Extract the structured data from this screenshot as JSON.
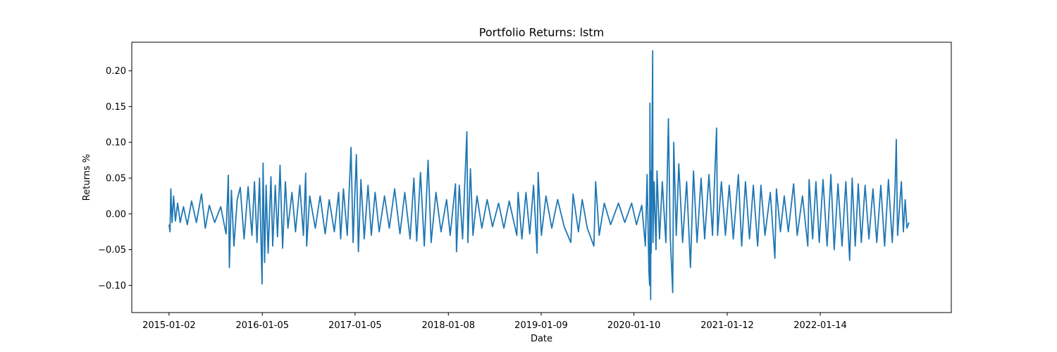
{
  "chart_data": {
    "type": "line",
    "title": "Portfolio Returns: lstm",
    "xlabel": "Date",
    "ylabel": "Returns %",
    "x_start": "2015-01-02",
    "x_end": "2022-12-30",
    "xlim": [
      "2014-08-08",
      "2023-06-15"
    ],
    "ylim": [
      -0.138,
      0.24
    ],
    "x_tick_labels": [
      "2015-01-02",
      "2016-01-05",
      "2017-01-05",
      "2018-01-08",
      "2019-01-09",
      "2020-01-10",
      "2021-01-12",
      "2022-01-14"
    ],
    "y_ticks": [
      -0.1,
      -0.05,
      0.0,
      0.05,
      0.1,
      0.15,
      0.2
    ],
    "y_tick_labels": [
      "−0.10",
      "−0.05",
      "0.00",
      "0.05",
      "0.10",
      "0.15",
      "0.20"
    ],
    "grid": false,
    "legend": "none",
    "series": [
      {
        "color": "#1f77b4",
        "points": [
          [
            "2015-01-02",
            -0.015
          ],
          [
            "2015-01-06",
            -0.025
          ],
          [
            "2015-01-09",
            0.035
          ],
          [
            "2015-01-14",
            -0.012
          ],
          [
            "2015-01-20",
            0.025
          ],
          [
            "2015-01-27",
            -0.01
          ],
          [
            "2015-02-05",
            0.015
          ],
          [
            "2015-02-15",
            -0.012
          ],
          [
            "2015-02-28",
            0.01
          ],
          [
            "2015-03-15",
            -0.015
          ],
          [
            "2015-04-01",
            0.018
          ],
          [
            "2015-04-20",
            -0.012
          ],
          [
            "2015-05-10",
            0.028
          ],
          [
            "2015-05-25",
            -0.02
          ],
          [
            "2015-06-10",
            0.012
          ],
          [
            "2015-07-01",
            -0.012
          ],
          [
            "2015-07-25",
            0.01
          ],
          [
            "2015-08-15",
            -0.028
          ],
          [
            "2015-08-24",
            0.054
          ],
          [
            "2015-08-28",
            -0.075
          ],
          [
            "2015-09-05",
            0.033
          ],
          [
            "2015-09-15",
            -0.045
          ],
          [
            "2015-09-28",
            0.02
          ],
          [
            "2015-10-10",
            0.037
          ],
          [
            "2015-10-25",
            -0.035
          ],
          [
            "2015-11-10",
            0.038
          ],
          [
            "2015-11-25",
            -0.03
          ],
          [
            "2015-12-05",
            0.045
          ],
          [
            "2015-12-15",
            -0.04
          ],
          [
            "2015-12-25",
            0.05
          ],
          [
            "2016-01-04",
            -0.098
          ],
          [
            "2016-01-08",
            0.071
          ],
          [
            "2016-01-14",
            -0.068
          ],
          [
            "2016-01-20",
            0.04
          ],
          [
            "2016-01-28",
            -0.055
          ],
          [
            "2016-02-08",
            0.052
          ],
          [
            "2016-02-15",
            -0.045
          ],
          [
            "2016-02-25",
            0.04
          ],
          [
            "2016-03-05",
            -0.032
          ],
          [
            "2016-03-15",
            0.068
          ],
          [
            "2016-03-25",
            -0.048
          ],
          [
            "2016-04-05",
            0.045
          ],
          [
            "2016-04-15",
            -0.02
          ],
          [
            "2016-05-01",
            0.03
          ],
          [
            "2016-05-15",
            -0.025
          ],
          [
            "2016-06-01",
            0.04
          ],
          [
            "2016-06-15",
            -0.03
          ],
          [
            "2016-06-24",
            0.057
          ],
          [
            "2016-06-28",
            -0.045
          ],
          [
            "2016-07-10",
            0.025
          ],
          [
            "2016-08-01",
            -0.02
          ],
          [
            "2016-08-20",
            0.025
          ],
          [
            "2016-09-09",
            -0.028
          ],
          [
            "2016-09-25",
            0.02
          ],
          [
            "2016-10-15",
            -0.025
          ],
          [
            "2016-11-01",
            0.03
          ],
          [
            "2016-11-09",
            -0.035
          ],
          [
            "2016-11-20",
            0.035
          ],
          [
            "2016-12-05",
            -0.03
          ],
          [
            "2016-12-20",
            0.093
          ],
          [
            "2016-12-28",
            -0.04
          ],
          [
            "2017-01-10",
            0.083
          ],
          [
            "2017-01-18",
            -0.053
          ],
          [
            "2017-01-28",
            0.048
          ],
          [
            "2017-02-10",
            -0.035
          ],
          [
            "2017-02-25",
            0.04
          ],
          [
            "2017-03-10",
            -0.03
          ],
          [
            "2017-03-25",
            0.03
          ],
          [
            "2017-04-10",
            -0.025
          ],
          [
            "2017-05-01",
            0.025
          ],
          [
            "2017-05-20",
            -0.02
          ],
          [
            "2017-06-10",
            0.035
          ],
          [
            "2017-07-01",
            -0.028
          ],
          [
            "2017-07-20",
            0.03
          ],
          [
            "2017-08-10",
            -0.035
          ],
          [
            "2017-08-25",
            0.05
          ],
          [
            "2017-09-05",
            -0.038
          ],
          [
            "2017-09-20",
            0.058
          ],
          [
            "2017-10-05",
            -0.045
          ],
          [
            "2017-10-20",
            0.075
          ],
          [
            "2017-11-01",
            -0.04
          ],
          [
            "2017-11-20",
            0.03
          ],
          [
            "2017-12-10",
            -0.025
          ],
          [
            "2018-01-01",
            0.02
          ],
          [
            "2018-01-15",
            -0.03
          ],
          [
            "2018-02-05",
            0.042
          ],
          [
            "2018-02-09",
            -0.053
          ],
          [
            "2018-02-20",
            0.04
          ],
          [
            "2018-03-05",
            -0.035
          ],
          [
            "2018-03-22",
            0.115
          ],
          [
            "2018-03-26",
            -0.04
          ],
          [
            "2018-04-05",
            0.063
          ],
          [
            "2018-04-15",
            -0.03
          ],
          [
            "2018-05-01",
            0.025
          ],
          [
            "2018-05-20",
            -0.02
          ],
          [
            "2018-06-10",
            0.02
          ],
          [
            "2018-07-01",
            -0.018
          ],
          [
            "2018-07-25",
            0.015
          ],
          [
            "2018-08-15",
            -0.02
          ],
          [
            "2018-09-05",
            0.018
          ],
          [
            "2018-10-05",
            -0.03
          ],
          [
            "2018-10-10",
            0.03
          ],
          [
            "2018-10-25",
            -0.035
          ],
          [
            "2018-11-10",
            0.03
          ],
          [
            "2018-11-25",
            -0.028
          ],
          [
            "2018-12-10",
            0.04
          ],
          [
            "2018-12-24",
            -0.055
          ],
          [
            "2018-12-28",
            0.058
          ],
          [
            "2019-01-10",
            -0.03
          ],
          [
            "2019-01-28",
            0.025
          ],
          [
            "2019-02-20",
            -0.02
          ],
          [
            "2019-03-15",
            0.02
          ],
          [
            "2019-04-10",
            -0.018
          ],
          [
            "2019-05-06",
            -0.04
          ],
          [
            "2019-05-15",
            0.028
          ],
          [
            "2019-06-05",
            -0.025
          ],
          [
            "2019-06-20",
            0.02
          ],
          [
            "2019-07-10",
            -0.02
          ],
          [
            "2019-08-05",
            -0.045
          ],
          [
            "2019-08-12",
            0.045
          ],
          [
            "2019-08-26",
            -0.03
          ],
          [
            "2019-09-15",
            0.015
          ],
          [
            "2019-10-10",
            -0.015
          ],
          [
            "2019-11-10",
            0.015
          ],
          [
            "2019-12-05",
            -0.012
          ],
          [
            "2020-01-01",
            0.015
          ],
          [
            "2020-01-20",
            -0.015
          ],
          [
            "2020-02-10",
            0.012
          ],
          [
            "2020-02-24",
            -0.045
          ],
          [
            "2020-03-02",
            0.055
          ],
          [
            "2020-03-09",
            -0.08
          ],
          [
            "2020-03-12",
            -0.1
          ],
          [
            "2020-03-13",
            0.155
          ],
          [
            "2020-03-16",
            -0.12
          ],
          [
            "2020-03-17",
            0.06
          ],
          [
            "2020-03-18",
            -0.055
          ],
          [
            "2020-03-24",
            0.228
          ],
          [
            "2020-03-25",
            -0.04
          ],
          [
            "2020-03-30",
            0.045
          ],
          [
            "2020-04-06",
            -0.05
          ],
          [
            "2020-04-10",
            0.06
          ],
          [
            "2020-04-20",
            -0.035
          ],
          [
            "2020-05-01",
            0.045
          ],
          [
            "2020-05-15",
            -0.04
          ],
          [
            "2020-05-25",
            0.133
          ],
          [
            "2020-06-01",
            -0.03
          ],
          [
            "2020-06-11",
            -0.11
          ],
          [
            "2020-06-15",
            0.1
          ],
          [
            "2020-06-25",
            -0.03
          ],
          [
            "2020-07-05",
            0.07
          ],
          [
            "2020-07-20",
            -0.04
          ],
          [
            "2020-08-05",
            0.045
          ],
          [
            "2020-08-20",
            -0.075
          ],
          [
            "2020-09-01",
            0.06
          ],
          [
            "2020-09-15",
            -0.04
          ],
          [
            "2020-10-01",
            0.05
          ],
          [
            "2020-10-15",
            -0.035
          ],
          [
            "2020-11-01",
            0.055
          ],
          [
            "2020-11-15",
            -0.03
          ],
          [
            "2020-12-01",
            0.12
          ],
          [
            "2020-12-05",
            -0.03
          ],
          [
            "2020-12-20",
            0.045
          ],
          [
            "2021-01-05",
            -0.03
          ],
          [
            "2021-01-20",
            0.04
          ],
          [
            "2021-02-05",
            -0.035
          ],
          [
            "2021-02-25",
            0.055
          ],
          [
            "2021-03-10",
            -0.045
          ],
          [
            "2021-03-25",
            0.045
          ],
          [
            "2021-04-10",
            -0.035
          ],
          [
            "2021-04-25",
            0.04
          ],
          [
            "2021-05-12",
            -0.045
          ],
          [
            "2021-05-25",
            0.04
          ],
          [
            "2021-06-10",
            -0.03
          ],
          [
            "2021-07-01",
            0.03
          ],
          [
            "2021-07-19",
            -0.062
          ],
          [
            "2021-07-25",
            0.035
          ],
          [
            "2021-08-10",
            -0.025
          ],
          [
            "2021-08-25",
            0.025
          ],
          [
            "2021-09-10",
            -0.025
          ],
          [
            "2021-10-01",
            0.042
          ],
          [
            "2021-10-15",
            -0.03
          ],
          [
            "2021-11-05",
            0.025
          ],
          [
            "2021-11-26",
            -0.045
          ],
          [
            "2021-12-01",
            0.048
          ],
          [
            "2021-12-15",
            -0.035
          ],
          [
            "2021-12-28",
            0.045
          ],
          [
            "2022-01-10",
            -0.04
          ],
          [
            "2022-01-25",
            0.048
          ],
          [
            "2022-02-10",
            -0.045
          ],
          [
            "2022-02-25",
            0.055
          ],
          [
            "2022-03-10",
            -0.05
          ],
          [
            "2022-03-25",
            0.042
          ],
          [
            "2022-04-10",
            -0.045
          ],
          [
            "2022-04-25",
            0.045
          ],
          [
            "2022-05-10",
            -0.065
          ],
          [
            "2022-05-20",
            0.05
          ],
          [
            "2022-06-01",
            -0.045
          ],
          [
            "2022-06-13",
            0.042
          ],
          [
            "2022-06-25",
            -0.04
          ],
          [
            "2022-07-10",
            0.04
          ],
          [
            "2022-07-25",
            -0.035
          ],
          [
            "2022-08-10",
            0.035
          ],
          [
            "2022-08-25",
            -0.04
          ],
          [
            "2022-09-10",
            0.04
          ],
          [
            "2022-09-25",
            -0.045
          ],
          [
            "2022-10-10",
            0.048
          ],
          [
            "2022-10-25",
            -0.04
          ],
          [
            "2022-11-05",
            0.035
          ],
          [
            "2022-11-10",
            0.104
          ],
          [
            "2022-11-15",
            -0.03
          ],
          [
            "2022-11-30",
            0.045
          ],
          [
            "2022-12-08",
            -0.025
          ],
          [
            "2022-12-15",
            0.02
          ],
          [
            "2022-12-22",
            -0.02
          ],
          [
            "2022-12-30",
            -0.012
          ]
        ]
      }
    ]
  }
}
